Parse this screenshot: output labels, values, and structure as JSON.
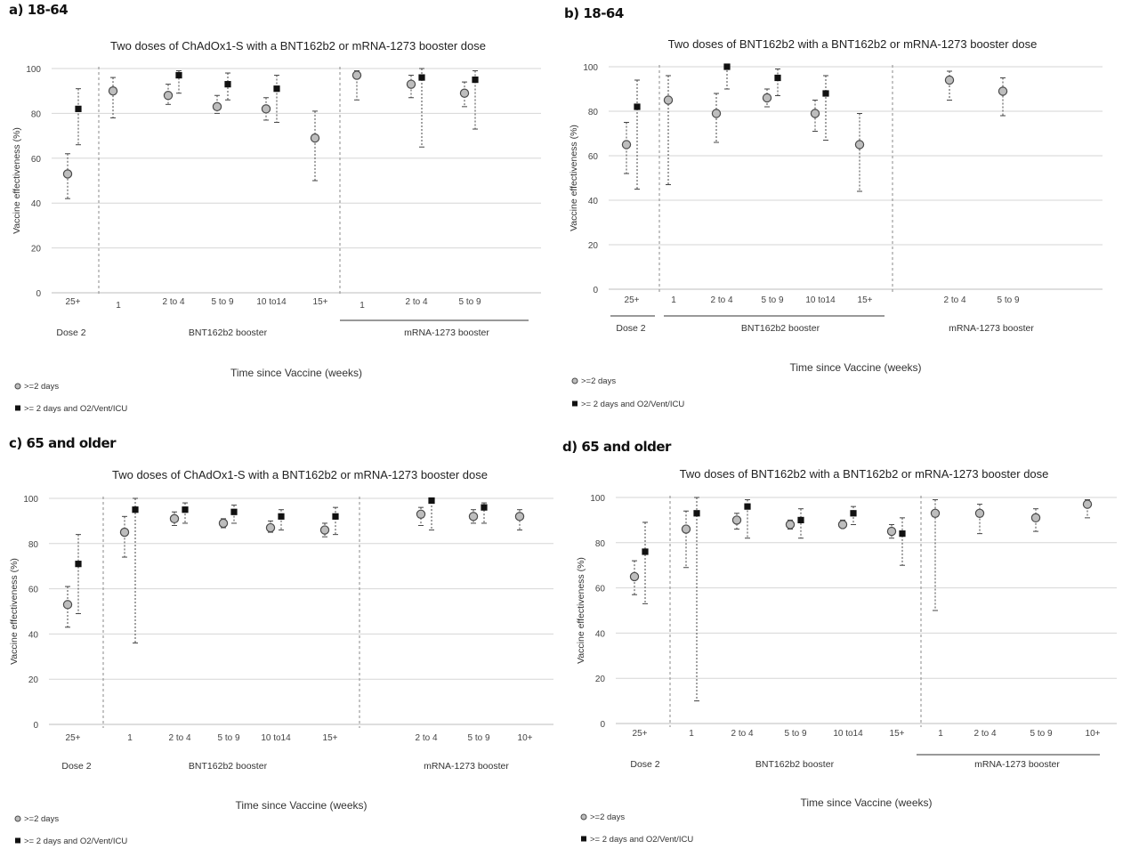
{
  "chart_data": [
    {
      "type": "scatter",
      "panel": "a) 18-64",
      "title": "Two doses of ChAdOx1-S with a BNT162b2 or mRNA-1273 booster dose",
      "ylabel": "Vaccine effectiveness (%)",
      "xlabel": "Time since Vaccine (weeks)",
      "ylim": [
        0,
        100
      ],
      "yticks": [
        "0",
        "20",
        "40",
        "60",
        "80",
        "100"
      ],
      "categories": [
        "25+",
        "1",
        "2 to 4",
        "5 to 9",
        "10 to14",
        "15+",
        "1",
        "2 to 4",
        "5 to 9"
      ],
      "groups": [
        {
          "label": "Dose 2",
          "start": 0,
          "end": 0
        },
        {
          "label": "BNT162b2 booster",
          "start": 1,
          "end": 5
        },
        {
          "label": "mRNA-1273 booster",
          "start": 6,
          "end": 8
        }
      ],
      "series": [
        {
          "name": ">=2 days",
          "marker": "circle",
          "values": [
            53,
            90,
            88,
            83,
            82,
            69,
            97,
            93,
            89
          ],
          "lower": [
            42,
            78,
            84,
            80,
            77,
            50,
            86,
            87,
            83
          ],
          "upper": [
            62,
            96,
            93,
            88,
            87,
            81,
            99,
            97,
            94
          ]
        },
        {
          "name": ">= 2 days and O2/Vent/ICU",
          "marker": "square",
          "values": [
            82,
            null,
            97,
            93,
            91,
            null,
            null,
            96,
            95
          ],
          "lower": [
            66,
            null,
            89,
            86,
            76,
            null,
            null,
            65,
            73
          ],
          "upper": [
            91,
            null,
            99,
            98,
            97,
            null,
            null,
            100,
            99
          ]
        }
      ],
      "legend": [
        ">=2 days",
        ">= 2 days and O2/Vent/ICU"
      ]
    },
    {
      "type": "scatter",
      "panel": "b) 18-64",
      "title": "Two doses of BNT162b2 with a BNT162b2 or mRNA-1273 booster dose",
      "ylabel": "Vaccine effectiveness (%)",
      "xlabel": "Time since Vaccine (weeks)",
      "ylim": [
        0,
        100
      ],
      "yticks": [
        "0",
        "20",
        "40",
        "60",
        "80",
        "100"
      ],
      "categories": [
        "25+",
        "1",
        "2 to 4",
        "5 to 9",
        "10 to14",
        "15+",
        "2 to 4",
        "5 to 9"
      ],
      "groups": [
        {
          "label": "Dose 2",
          "start": 0,
          "end": 0
        },
        {
          "label": "BNT162b2 booster",
          "start": 1,
          "end": 5
        },
        {
          "label": "mRNA-1273 booster",
          "start": 6,
          "end": 7
        }
      ],
      "series": [
        {
          "name": ">=2 days",
          "marker": "circle",
          "values": [
            65,
            85,
            79,
            86,
            79,
            65,
            94,
            89
          ],
          "lower": [
            52,
            47,
            66,
            82,
            71,
            44,
            85,
            78
          ],
          "upper": [
            75,
            96,
            88,
            90,
            85,
            79,
            98,
            95
          ]
        },
        {
          "name": ">= 2 days and O2/Vent/ICU",
          "marker": "square",
          "values": [
            82,
            null,
            100,
            95,
            88,
            null,
            null,
            null
          ],
          "lower": [
            45,
            null,
            90,
            87,
            67,
            null,
            null,
            null
          ],
          "upper": [
            94,
            null,
            100,
            99,
            96,
            null,
            null,
            null
          ]
        }
      ],
      "legend": [
        ">=2 days",
        ">= 2 days and O2/Vent/ICU"
      ]
    },
    {
      "type": "scatter",
      "panel": "c) 65 and older",
      "title": "Two doses of ChAdOx1-S with a BNT162b2 or mRNA-1273 booster dose",
      "ylabel": "Vaccine effectiveness (%)",
      "xlabel": "Time since Vaccine (weeks)",
      "ylim": [
        0,
        100
      ],
      "yticks": [
        "0",
        "20",
        "40",
        "60",
        "80",
        "100"
      ],
      "categories": [
        "25+",
        "1",
        "2 to 4",
        "5 to 9",
        "10 to14",
        "15+",
        "2 to 4",
        "5 to 9",
        "10+"
      ],
      "groups": [
        {
          "label": "Dose 2",
          "start": 0,
          "end": 0
        },
        {
          "label": "BNT162b2 booster",
          "start": 1,
          "end": 5
        },
        {
          "label": "mRNA-1273 booster",
          "start": 6,
          "end": 8
        }
      ],
      "series": [
        {
          "name": ">=2 days",
          "marker": "circle",
          "values": [
            53,
            85,
            91,
            89,
            87,
            86,
            93,
            92,
            92
          ],
          "lower": [
            43,
            74,
            88,
            87,
            85,
            83,
            88,
            89,
            86
          ],
          "upper": [
            61,
            92,
            94,
            91,
            90,
            89,
            96,
            95,
            95
          ]
        },
        {
          "name": ">= 2 days and O2/Vent/ICU",
          "marker": "square",
          "values": [
            71,
            95,
            95,
            94,
            92,
            92,
            99,
            96,
            null
          ],
          "lower": [
            49,
            36,
            89,
            89,
            86,
            84,
            86,
            89,
            null
          ],
          "upper": [
            84,
            100,
            98,
            97,
            95,
            96,
            100,
            98,
            null
          ]
        }
      ],
      "legend": [
        ">=2 days",
        ">= 2 days and O2/Vent/ICU"
      ]
    },
    {
      "type": "scatter",
      "panel": "d) 65 and older",
      "title": "Two doses of BNT162b2 with a BNT162b2 or mRNA-1273 booster dose",
      "ylabel": "Vaccine effectiveness (%)",
      "xlabel": "Time since Vaccine (weeks)",
      "ylim": [
        0,
        100
      ],
      "yticks": [
        "0",
        "20",
        "40",
        "60",
        "80",
        "100"
      ],
      "categories": [
        "25+",
        "1",
        "2 to 4",
        "5 to 9",
        "10 to14",
        "15+",
        "1",
        "2 to 4",
        "5 to 9",
        "10+"
      ],
      "groups": [
        {
          "label": "Dose 2",
          "start": 0,
          "end": 0
        },
        {
          "label": "BNT162b2 booster",
          "start": 1,
          "end": 5
        },
        {
          "label": "mRNA-1273 booster",
          "start": 6,
          "end": 9
        }
      ],
      "series": [
        {
          "name": ">=2 days",
          "marker": "circle",
          "values": [
            65,
            86,
            90,
            88,
            88,
            85,
            93,
            93,
            91,
            97
          ],
          "lower": [
            57,
            69,
            86,
            86,
            87,
            82,
            50,
            84,
            85,
            91
          ],
          "upper": [
            72,
            94,
            93,
            90,
            90,
            88,
            99,
            97,
            95,
            99
          ]
        },
        {
          "name": ">= 2 days and O2/Vent/ICU",
          "marker": "square",
          "values": [
            76,
            93,
            96,
            90,
            93,
            84,
            null,
            null,
            null,
            null
          ],
          "lower": [
            53,
            10,
            82,
            82,
            88,
            70,
            null,
            null,
            null,
            null
          ],
          "upper": [
            89,
            100,
            99,
            95,
            96,
            91,
            null,
            null,
            null,
            null
          ]
        }
      ],
      "legend": [
        ">=2 days",
        ">= 2 days and O2/Vent/ICU"
      ]
    }
  ]
}
